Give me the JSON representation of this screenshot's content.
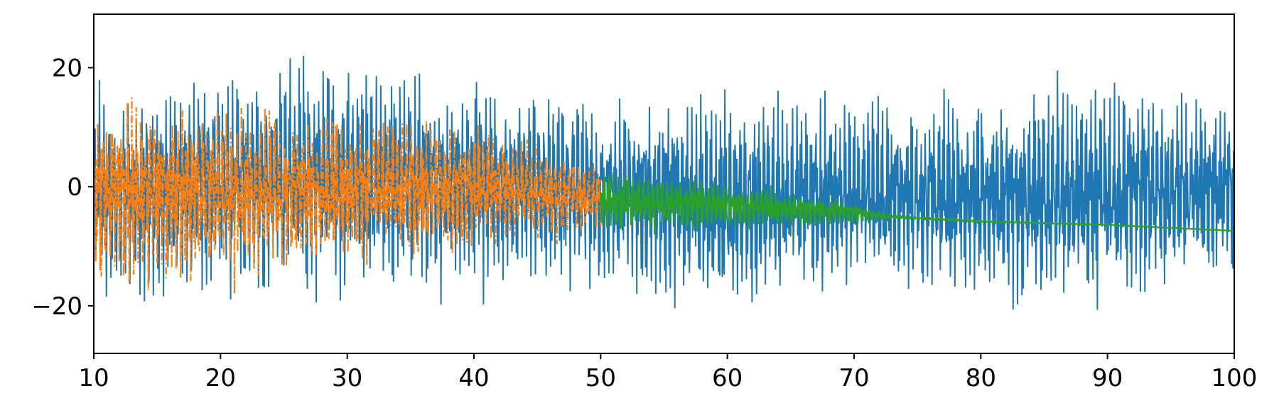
{
  "chart_data": {
    "type": "line",
    "title": "",
    "xlabel": "",
    "ylabel": "",
    "xlim": [
      10,
      100
    ],
    "ylim": [
      -28,
      29
    ],
    "x_ticks": [
      10,
      20,
      30,
      40,
      50,
      60,
      70,
      80,
      90,
      100
    ],
    "y_ticks": [
      -20,
      0,
      20
    ],
    "x_tick_labels": [
      "10",
      "20",
      "30",
      "40",
      "50",
      "60",
      "70",
      "80",
      "90",
      "100"
    ],
    "y_tick_labels": [
      "−20",
      "0",
      "20"
    ],
    "grid": false,
    "legend": "none",
    "series": [
      {
        "color": "#1f77b4",
        "style": "solid",
        "x_range": [
          10,
          100
        ],
        "envelope_x": [
          10,
          20,
          29,
          40,
          50,
          60,
          70,
          80,
          85,
          90,
          100
        ],
        "envelope_min": [
          -23,
          -21,
          -23,
          -22,
          -20,
          -25,
          -22,
          -22,
          -26,
          -23,
          -20
        ],
        "envelope_max": [
          20,
          23,
          27,
          22,
          19,
          19,
          19,
          19,
          22,
          22,
          19
        ]
      },
      {
        "color": "#ff7f0e",
        "style": "dashdot",
        "x_range": [
          10,
          50
        ],
        "envelope_x": [
          10,
          20,
          30,
          40,
          50
        ],
        "envelope_min": [
          -21,
          -20,
          -16,
          -13,
          -9
        ],
        "envelope_max": [
          19,
          17,
          15,
          13,
          5
        ]
      },
      {
        "color": "#2ca02c",
        "style": "solid",
        "x_range": [
          50,
          100
        ],
        "envelope_x": [
          50,
          55,
          60,
          65,
          70,
          73,
          80,
          90,
          100
        ],
        "envelope_min": [
          -9,
          -8.5,
          -8,
          -7.5,
          -6.5,
          -5.5,
          -6,
          -6.5,
          -7.5
        ],
        "envelope_max": [
          4,
          3,
          2,
          0,
          -2,
          -4.6,
          -5.6,
          -6.3,
          -7.3
        ]
      }
    ]
  }
}
